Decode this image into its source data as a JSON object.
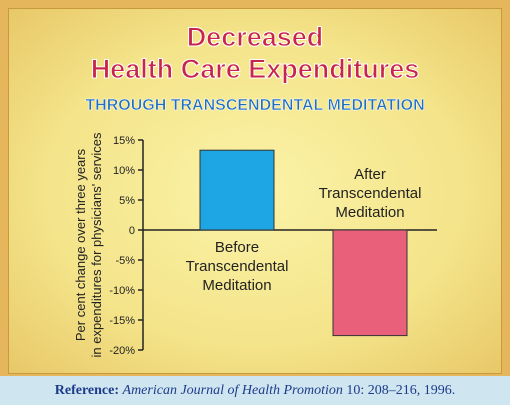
{
  "chart_data": {
    "type": "bar",
    "title": [
      "Decreased",
      "Health Care Expenditures"
    ],
    "subtitle": "THROUGH TRANSCENDENTAL MEDITATION",
    "y_label": [
      "Per cent change over three years",
      "in expenditures for physicians' services"
    ],
    "categories": [
      "Before Transcendental Meditation",
      "After Transcendental Meditation"
    ],
    "values": [
      13.3,
      -17.6
    ],
    "colors": [
      "#1ea5e3",
      "#e9607b"
    ],
    "ylim": [
      -20,
      15
    ],
    "yticks": [
      {
        "value": 15,
        "label": "15%"
      },
      {
        "value": 10,
        "label": "10%"
      },
      {
        "value": 5,
        "label": "5%"
      },
      {
        "value": 0,
        "label": "0"
      },
      {
        "value": -5,
        "label": "-5%"
      },
      {
        "value": -10,
        "label": "-10%"
      },
      {
        "value": -15,
        "label": "-15%"
      },
      {
        "value": -20,
        "label": "-20%"
      }
    ],
    "grid": false
  },
  "reference": {
    "label": "Reference:",
    "source": "American Journal of Health Promotion",
    "details": "10: 208–216, 1996."
  }
}
